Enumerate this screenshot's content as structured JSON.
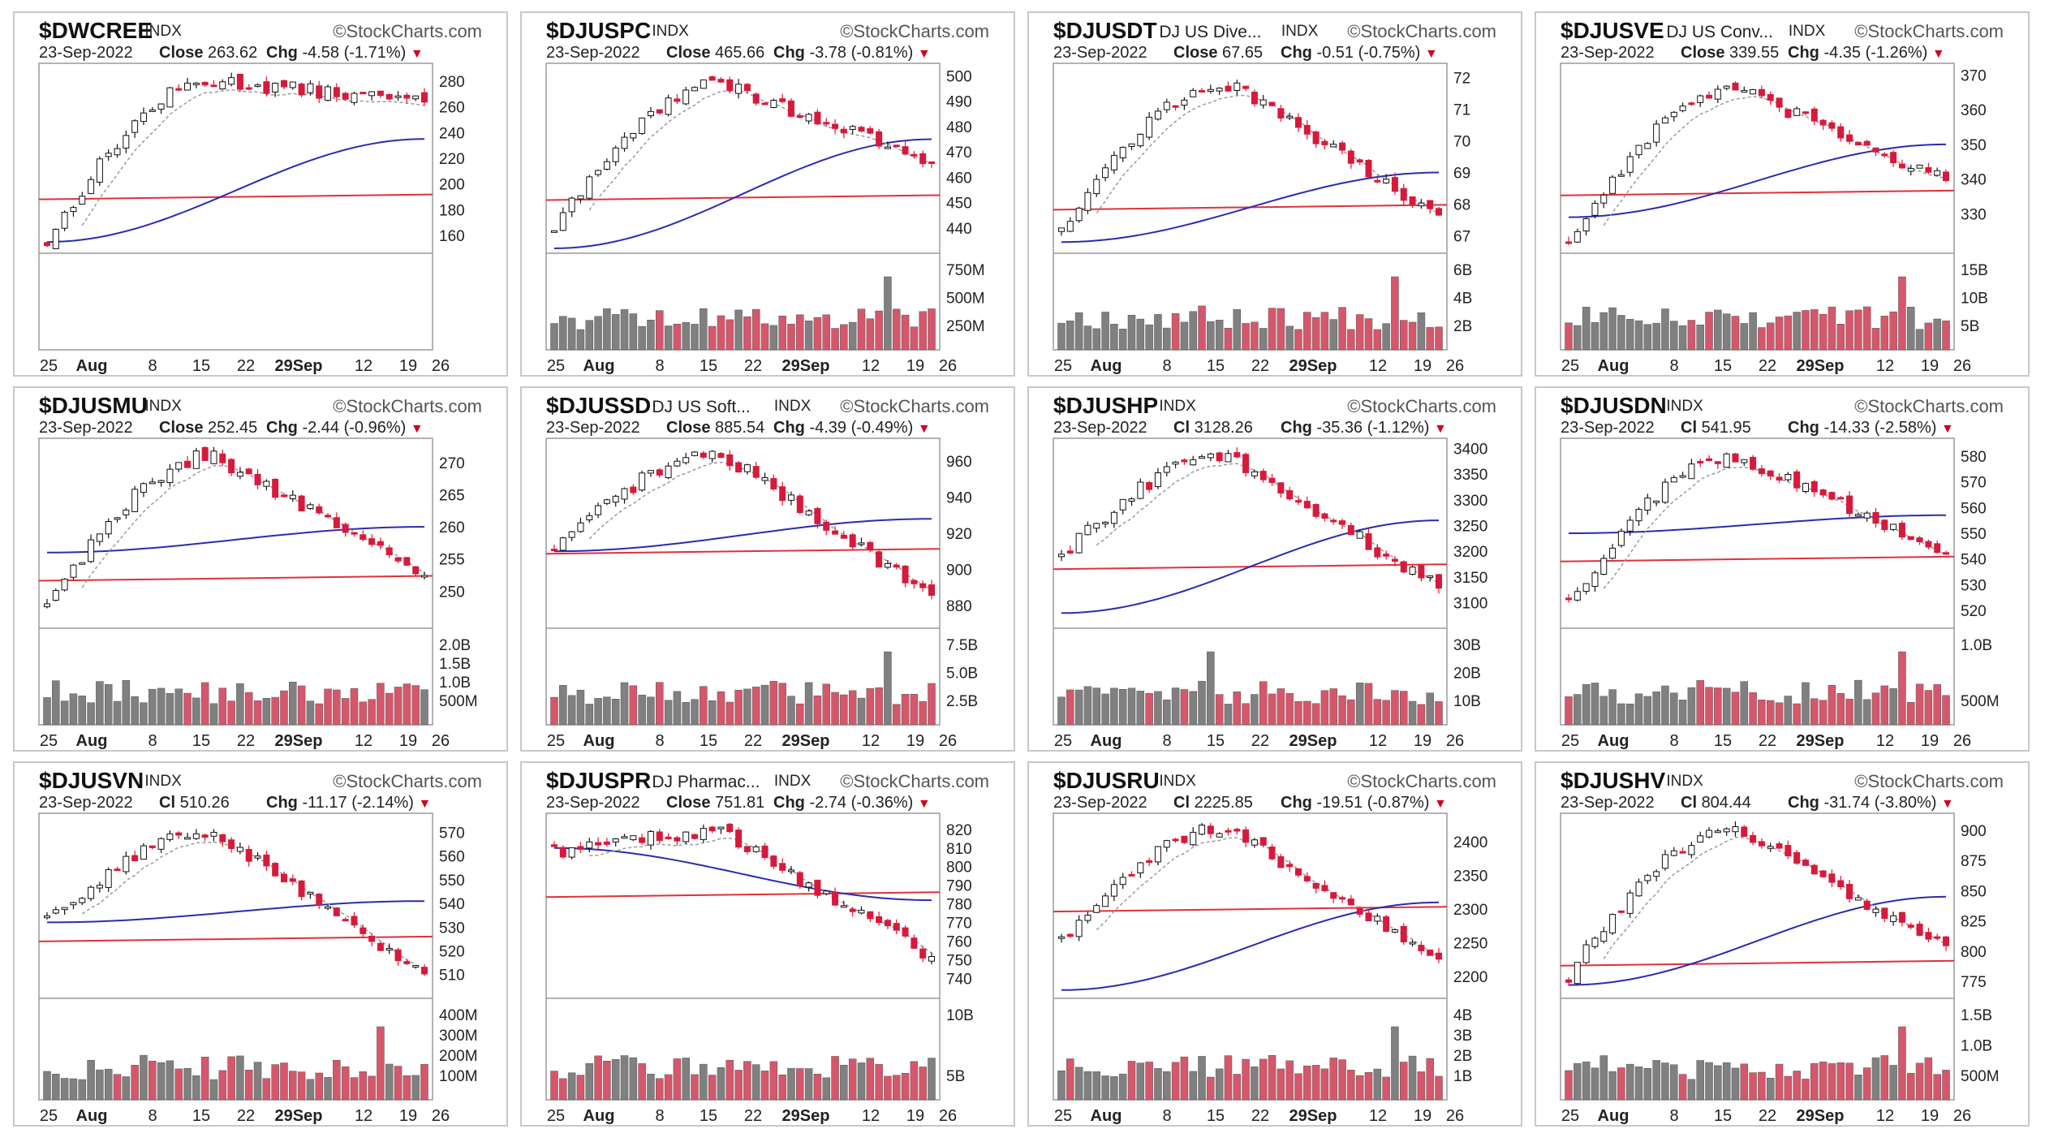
{
  "colors": {
    "up": "#ffffff",
    "down": "#e8132b",
    "down_fill": "#d61a3c",
    "vol_up": "#808080",
    "vol_down": "#d6576b",
    "sma50": "#2b2bb0",
    "sma200": "#e0303a",
    "sma20": "#9a9a9a",
    "frame": "#9a9a9a"
  },
  "watermark": "StockCharts.com",
  "date": "23-Sep-2022",
  "x_labels": [
    "25",
    "Aug",
    "8",
    "15",
    "22",
    "29Sep",
    "12",
    "19",
    "26"
  ],
  "panels": [
    {
      "symbol": "$DWCREE",
      "desc": "",
      "exch": "INDX",
      "close_label": "Close",
      "close": "263.62",
      "chg_label": "Chg",
      "chg": "-4.58 (-1.71%)",
      "price_ticks": [
        "280",
        "260",
        "240",
        "220",
        "200",
        "180",
        "160"
      ],
      "vol_ticks": [],
      "chart_data": {
        "type": "candlestick",
        "start": 155,
        "end": 263.62,
        "peak": 280,
        "ylim": [
          150,
          290
        ],
        "sma200": 190,
        "sma50_start": 155,
        "sma50_end": 235
      }
    },
    {
      "symbol": "$DJUSPC",
      "desc": "",
      "exch": "INDX",
      "close_label": "Close",
      "close": "465.66",
      "chg_label": "Chg",
      "chg": "-3.78 (-0.81%)",
      "price_ticks": [
        "500",
        "490",
        "480",
        "470",
        "460",
        "450",
        "440"
      ],
      "vol_ticks": [
        "750M",
        "500M",
        "250M"
      ],
      "chart_data": {
        "type": "candlestick",
        "start": 440,
        "end": 465.66,
        "peak": 497,
        "ylim": [
          432,
          503
        ],
        "sma200": 452,
        "sma50_start": 432,
        "sma50_end": 475
      }
    },
    {
      "symbol": "$DJUSDT",
      "desc": "DJ US Dive...",
      "exch": "INDX",
      "close_label": "Close",
      "close": "67.65",
      "chg_label": "Chg",
      "chg": "-0.51 (-0.75%)",
      "price_ticks": [
        "72",
        "71",
        "70",
        "69",
        "68",
        "67"
      ],
      "vol_ticks": [
        "6B",
        "4B",
        "2B"
      ],
      "chart_data": {
        "type": "candlestick",
        "start": 67.3,
        "end": 67.65,
        "peak": 71.8,
        "ylim": [
          66.6,
          72.3
        ],
        "sma200": 67.9,
        "sma50_start": 66.8,
        "sma50_end": 69
      }
    },
    {
      "symbol": "$DJUSVE",
      "desc": "DJ US Conv...",
      "exch": "INDX",
      "close_label": "Close",
      "close": "339.55",
      "chg_label": "Chg",
      "chg": "-4.35 (-1.26%)",
      "price_ticks": [
        "370",
        "360",
        "350",
        "340",
        "330"
      ],
      "vol_ticks": [
        "15B",
        "10B",
        "5B"
      ],
      "chart_data": {
        "type": "candlestick",
        "start": 322,
        "end": 339.55,
        "peak": 366,
        "ylim": [
          320,
          372
        ],
        "sma200": 336,
        "sma50_start": 329,
        "sma50_end": 350
      }
    },
    {
      "symbol": "$DJUSMU",
      "desc": "",
      "exch": "INDX",
      "close_label": "Close",
      "close": "252.45",
      "chg_label": "Chg",
      "chg": "-2.44 (-0.96%)",
      "price_ticks": [
        "270",
        "265",
        "260",
        "255",
        "250"
      ],
      "vol_ticks": [
        "2.0B",
        "1.5B",
        "1.0B",
        "500M"
      ],
      "chart_data": {
        "type": "candlestick",
        "start": 248,
        "end": 252.45,
        "peak": 271,
        "ylim": [
          245,
          273
        ],
        "sma200": 252,
        "sma50_start": 256,
        "sma50_end": 260
      }
    },
    {
      "symbol": "$DJUSSD",
      "desc": "DJ US Soft...",
      "exch": "INDX",
      "close_label": "Close",
      "close": "885.54",
      "chg_label": "Chg",
      "chg": "-4.39 (-0.49%)",
      "price_ticks": [
        "960",
        "940",
        "920",
        "900",
        "880"
      ],
      "vol_ticks": [
        "7.5B",
        "5.0B",
        "2.5B"
      ],
      "chart_data": {
        "type": "candlestick",
        "start": 910,
        "end": 885.54,
        "peak": 964,
        "ylim": [
          870,
          970
        ],
        "sma200": 910,
        "sma50_start": 910,
        "sma50_end": 928
      }
    },
    {
      "symbol": "$DJUSHP",
      "desc": "",
      "exch": "INDX",
      "close_label": "Cl",
      "close": "3128.26",
      "chg_label": "Chg",
      "chg": "-35.36 (-1.12%)",
      "price_ticks": [
        "3400",
        "3350",
        "3300",
        "3250",
        "3200",
        "3150",
        "3100"
      ],
      "vol_ticks": [
        "30B",
        "20B",
        "10B"
      ],
      "chart_data": {
        "type": "candlestick",
        "start": 3190,
        "end": 3128.26,
        "peak": 3385,
        "ylim": [
          3060,
          3410
        ],
        "sma200": 3170,
        "sma50_start": 3080,
        "sma50_end": 3260
      }
    },
    {
      "symbol": "$DJUSDN",
      "desc": "",
      "exch": "INDX",
      "close_label": "Cl",
      "close": "541.95",
      "chg_label": "Chg",
      "chg": "-14.33 (-2.58%)",
      "price_ticks": [
        "580",
        "570",
        "560",
        "550",
        "540",
        "530",
        "520"
      ],
      "vol_ticks": [
        "1.0B",
        "500M"
      ],
      "chart_data": {
        "type": "candlestick",
        "start": 523,
        "end": 541.95,
        "peak": 580,
        "ylim": [
          515,
          585
        ],
        "sma200": 540,
        "sma50_start": 550,
        "sma50_end": 557
      }
    },
    {
      "symbol": "$DJUSVN",
      "desc": "",
      "exch": "INDX",
      "close_label": "Cl",
      "close": "510.26",
      "chg_label": "Chg",
      "chg": "-11.17 (-2.14%)",
      "price_ticks": [
        "570",
        "560",
        "550",
        "540",
        "530",
        "520",
        "510"
      ],
      "vol_ticks": [
        "400M",
        "300M",
        "200M",
        "100M"
      ],
      "chart_data": {
        "type": "candlestick",
        "start": 533,
        "end": 510.26,
        "peak": 570,
        "ylim": [
          502,
          576
        ],
        "sma200": 525,
        "sma50_start": 532,
        "sma50_end": 541
      }
    },
    {
      "symbol": "$DJUSPR",
      "desc": "DJ Pharmac...",
      "exch": "INDX",
      "close_label": "Close",
      "close": "751.81",
      "chg_label": "Chg",
      "chg": "-2.74 (-0.36%)",
      "price_ticks": [
        "820",
        "810",
        "800",
        "790",
        "780",
        "770",
        "760",
        "750",
        "740"
      ],
      "vol_ticks": [
        "10B",
        "5B"
      ],
      "chart_data": {
        "type": "candlestick",
        "start": 808,
        "end": 751.81,
        "peak": 818,
        "ylim": [
          732,
          826
        ],
        "sma200": 785,
        "sma50_start": 810,
        "sma50_end": 782
      }
    },
    {
      "symbol": "$DJUSRU",
      "desc": "",
      "exch": "INDX",
      "close_label": "Cl",
      "close": "2225.85",
      "chg_label": "Chg",
      "chg": "-19.51 (-0.87%)",
      "price_ticks": [
        "2400",
        "2350",
        "2300",
        "2250",
        "2200"
      ],
      "vol_ticks": [
        "4B",
        "3B",
        "2B",
        "1B"
      ],
      "chart_data": {
        "type": "candlestick",
        "start": 2250,
        "end": 2225.85,
        "peak": 2420,
        "ylim": [
          2175,
          2435
        ],
        "sma200": 2300,
        "sma50_start": 2180,
        "sma50_end": 2310
      }
    },
    {
      "symbol": "$DJUSHV",
      "desc": "",
      "exch": "INDX",
      "close_label": "Cl",
      "close": "804.44",
      "chg_label": "Chg",
      "chg": "-31.74 (-3.80%)",
      "price_ticks": [
        "900",
        "875",
        "850",
        "825",
        "800",
        "775"
      ],
      "vol_ticks": [
        "1.5B",
        "1.0B",
        "500M"
      ],
      "chart_data": {
        "type": "candlestick",
        "start": 780,
        "end": 804.44,
        "peak": 900,
        "ylim": [
          765,
          910
        ],
        "sma200": 790,
        "sma50_start": 772,
        "sma50_end": 845
      }
    }
  ]
}
